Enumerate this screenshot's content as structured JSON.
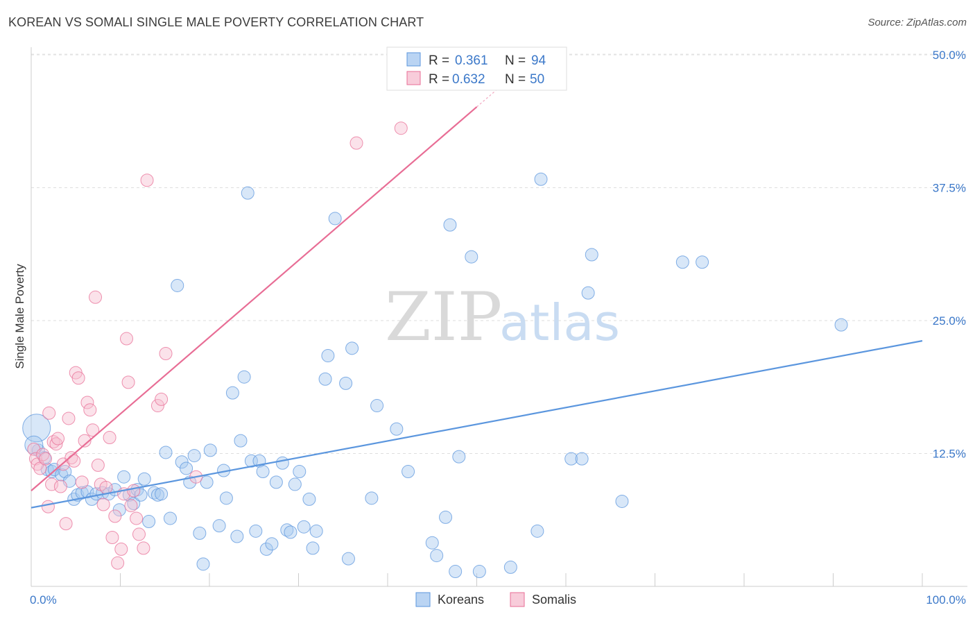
{
  "header": {
    "title": "KOREAN VS SOMALI SINGLE MALE POVERTY CORRELATION CHART",
    "source": "Source: ZipAtlas.com"
  },
  "watermark": {
    "zip": "ZIP",
    "atlas": "atlas"
  },
  "legend": {
    "rows": [
      {
        "r_label": "R =",
        "r_value": "0.361",
        "n_label": "N =",
        "n_value": "94",
        "color": "#9fc3ee"
      },
      {
        "r_label": "R =",
        "r_value": "0.632",
        "n_label": "N =",
        "n_value": "50",
        "color": "#f5b5cb"
      }
    ]
  },
  "bottom_legend": {
    "series1": "Koreans",
    "series2": "Somalis"
  },
  "chart_data": {
    "type": "scatter",
    "title": "KOREAN VS SOMALI SINGLE MALE POVERTY CORRELATION CHART",
    "xlabel": "",
    "ylabel": "Single Male Poverty",
    "xlim": [
      0,
      100
    ],
    "ylim": [
      0,
      50
    ],
    "x_tick_labels": [
      "0.0%",
      "100.0%"
    ],
    "y_ticks": [
      12.5,
      25.0,
      37.5,
      50.0
    ],
    "y_tick_labels": [
      "12.5%",
      "25.0%",
      "37.5%",
      "50.0%"
    ],
    "grid": "horizontal dashed",
    "legend_position": "top-center",
    "series": [
      {
        "name": "Koreans",
        "color": "#5b96de",
        "fill": "#a9c9f0",
        "trend": {
          "x": [
            0,
            100
          ],
          "y": [
            7.4,
            23.1
          ]
        },
        "points": [
          [
            0.6,
            14.9
          ],
          [
            0.8,
            12.8
          ],
          [
            1.5,
            12.1
          ],
          [
            1.8,
            11.0
          ],
          [
            2.3,
            10.8
          ],
          [
            2.6,
            11.0
          ],
          [
            3.4,
            10.5
          ],
          [
            3.8,
            10.8
          ],
          [
            4.3,
            9.9
          ],
          [
            4.8,
            8.2
          ],
          [
            5.2,
            8.6
          ],
          [
            5.7,
            8.8
          ],
          [
            6.3,
            8.9
          ],
          [
            6.8,
            8.2
          ],
          [
            7.3,
            8.7
          ],
          [
            8.0,
            8.8
          ],
          [
            8.7,
            8.7
          ],
          [
            9.4,
            9.1
          ],
          [
            9.9,
            7.2
          ],
          [
            10.4,
            10.3
          ],
          [
            11.0,
            8.6
          ],
          [
            11.5,
            7.8
          ],
          [
            11.9,
            9.1
          ],
          [
            12.3,
            8.6
          ],
          [
            12.7,
            10.1
          ],
          [
            13.2,
            6.1
          ],
          [
            13.8,
            8.8
          ],
          [
            14.2,
            8.6
          ],
          [
            14.6,
            8.7
          ],
          [
            15.1,
            12.6
          ],
          [
            15.6,
            6.4
          ],
          [
            16.4,
            28.3
          ],
          [
            16.9,
            11.7
          ],
          [
            17.4,
            11.1
          ],
          [
            17.8,
            9.8
          ],
          [
            18.3,
            12.3
          ],
          [
            18.9,
            5.0
          ],
          [
            19.3,
            2.1
          ],
          [
            19.7,
            9.8
          ],
          [
            20.1,
            12.8
          ],
          [
            21.1,
            5.7
          ],
          [
            21.6,
            10.9
          ],
          [
            21.9,
            8.3
          ],
          [
            22.6,
            18.2
          ],
          [
            23.1,
            4.7
          ],
          [
            23.5,
            13.7
          ],
          [
            23.9,
            19.7
          ],
          [
            24.3,
            37.0
          ],
          [
            24.7,
            11.8
          ],
          [
            25.2,
            5.2
          ],
          [
            25.6,
            11.8
          ],
          [
            26.0,
            10.8
          ],
          [
            26.4,
            3.5
          ],
          [
            27.0,
            4.0
          ],
          [
            27.5,
            9.8
          ],
          [
            28.2,
            11.6
          ],
          [
            28.7,
            5.3
          ],
          [
            29.1,
            5.1
          ],
          [
            29.6,
            9.6
          ],
          [
            30.1,
            10.8
          ],
          [
            30.6,
            5.6
          ],
          [
            31.2,
            8.2
          ],
          [
            31.6,
            3.6
          ],
          [
            32.0,
            5.2
          ],
          [
            33.0,
            19.5
          ],
          [
            33.3,
            21.7
          ],
          [
            34.1,
            34.6
          ],
          [
            35.3,
            19.1
          ],
          [
            35.6,
            2.6
          ],
          [
            36.0,
            22.4
          ],
          [
            38.2,
            8.3
          ],
          [
            38.8,
            17.0
          ],
          [
            41.0,
            14.8
          ],
          [
            42.3,
            10.8
          ],
          [
            45.0,
            4.1
          ],
          [
            45.5,
            2.9
          ],
          [
            46.5,
            6.5
          ],
          [
            47.0,
            34.0
          ],
          [
            47.6,
            1.4
          ],
          [
            48.0,
            12.2
          ],
          [
            49.4,
            31.0
          ],
          [
            50.3,
            1.4
          ],
          [
            53.8,
            1.8
          ],
          [
            56.8,
            5.2
          ],
          [
            57.2,
            38.3
          ],
          [
            60.6,
            12.0
          ],
          [
            61.8,
            12.0
          ],
          [
            62.5,
            27.6
          ],
          [
            62.9,
            31.2
          ],
          [
            66.3,
            8.0
          ],
          [
            73.1,
            30.5
          ],
          [
            75.3,
            30.5
          ],
          [
            90.9,
            24.6
          ],
          [
            0.3,
            13.3
          ]
        ]
      },
      {
        "name": "Somalis",
        "color": "#e86d95",
        "fill": "#f6bfd1",
        "trend": {
          "x": [
            0,
            50
          ],
          "y": [
            9.0,
            45.1
          ]
        },
        "points": [
          [
            0.3,
            12.9
          ],
          [
            0.5,
            12.0
          ],
          [
            0.7,
            11.5
          ],
          [
            1.0,
            11.1
          ],
          [
            1.3,
            12.4
          ],
          [
            1.6,
            12.0
          ],
          [
            2.0,
            16.3
          ],
          [
            2.3,
            9.6
          ],
          [
            2.5,
            13.6
          ],
          [
            2.8,
            13.4
          ],
          [
            3.0,
            13.9
          ],
          [
            3.3,
            9.4
          ],
          [
            3.6,
            11.5
          ],
          [
            3.9,
            5.9
          ],
          [
            4.2,
            15.8
          ],
          [
            4.5,
            12.1
          ],
          [
            4.8,
            11.8
          ],
          [
            5.0,
            20.1
          ],
          [
            5.3,
            19.6
          ],
          [
            5.7,
            9.8
          ],
          [
            6.0,
            13.7
          ],
          [
            6.3,
            17.3
          ],
          [
            6.6,
            16.6
          ],
          [
            6.9,
            14.7
          ],
          [
            7.2,
            27.2
          ],
          [
            7.5,
            11.4
          ],
          [
            7.8,
            9.6
          ],
          [
            8.1,
            7.7
          ],
          [
            8.4,
            9.3
          ],
          [
            8.8,
            14.0
          ],
          [
            9.1,
            4.6
          ],
          [
            9.4,
            6.6
          ],
          [
            9.7,
            2.2
          ],
          [
            10.1,
            3.5
          ],
          [
            10.4,
            8.7
          ],
          [
            10.7,
            23.3
          ],
          [
            10.9,
            19.2
          ],
          [
            11.2,
            7.6
          ],
          [
            11.5,
            9.0
          ],
          [
            11.8,
            6.4
          ],
          [
            12.1,
            4.9
          ],
          [
            12.6,
            3.6
          ],
          [
            13.0,
            38.2
          ],
          [
            14.2,
            17.0
          ],
          [
            14.6,
            17.6
          ],
          [
            15.1,
            21.9
          ],
          [
            18.5,
            10.3
          ],
          [
            36.5,
            41.7
          ],
          [
            41.5,
            43.1
          ],
          [
            1.9,
            7.5
          ]
        ]
      }
    ]
  }
}
